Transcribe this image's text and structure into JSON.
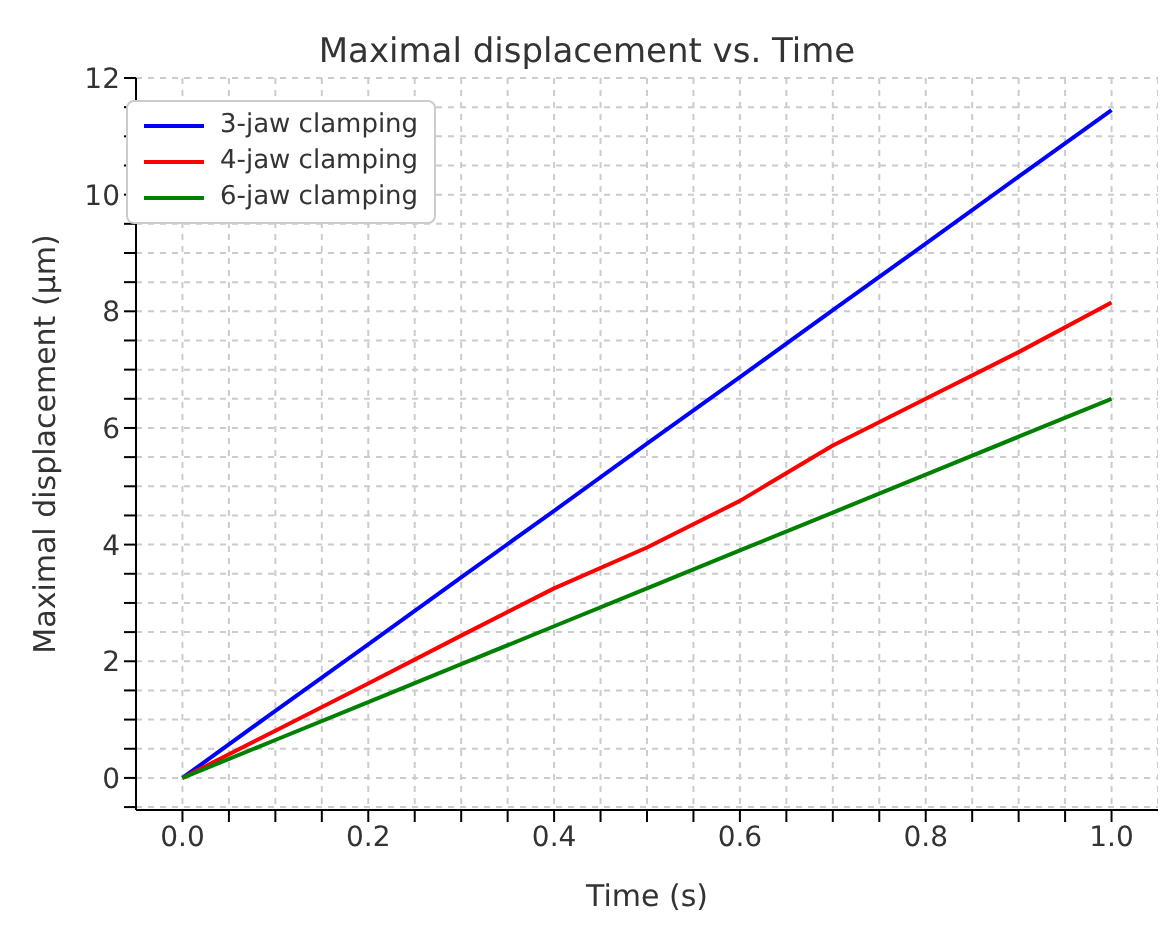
{
  "chart_data": {
    "type": "line",
    "title": "Maximal displacement vs. Time",
    "xlabel": "Time (s)",
    "ylabel": "Maximal displacement (µm)",
    "x": [
      0,
      0.1,
      0.2,
      0.3,
      0.4,
      0.5,
      0.6,
      0.7,
      0.8,
      0.9,
      1.0
    ],
    "series": [
      {
        "name": "3-jaw clamping",
        "color": "#0000ff",
        "values": [
          0,
          1.15,
          2.29,
          3.44,
          4.58,
          5.73,
          6.87,
          8.02,
          9.16,
          10.31,
          11.45
        ]
      },
      {
        "name": "4-jaw clamping",
        "color": "#ff0000",
        "values": [
          0,
          0.81,
          1.62,
          2.44,
          3.25,
          3.95,
          4.75,
          5.7,
          6.5,
          7.3,
          8.15
        ]
      },
      {
        "name": "6-jaw clamping",
        "color": "#008000",
        "values": [
          0,
          0.65,
          1.3,
          1.95,
          2.6,
          3.25,
          3.9,
          4.55,
          5.2,
          5.85,
          6.5
        ]
      }
    ],
    "xlim": [
      -0.05,
      1.05
    ],
    "xticks": [
      {
        "value": 0,
        "label": "0.0"
      },
      {
        "value": 0.05,
        "label": null
      },
      {
        "value": 0.1,
        "label": null
      },
      {
        "value": 0.15,
        "label": null
      },
      0.2,
      {
        "value": 0.25,
        "label": null
      },
      {
        "value": 0.3,
        "label": null
      },
      {
        "value": 0.35,
        "label": null
      },
      0.4,
      {
        "value": 0.45,
        "label": null
      },
      {
        "value": 0.5,
        "label": null
      },
      {
        "value": 0.55,
        "label": null
      },
      0.6,
      {
        "value": 0.65,
        "label": null
      },
      {
        "value": 0.7,
        "label": null
      },
      {
        "value": 0.75,
        "label": null
      },
      0.8,
      {
        "value": 0.85,
        "label": null
      },
      {
        "value": 0.9,
        "label": null
      },
      {
        "value": 0.95,
        "label": null
      },
      {
        "value": 1,
        "label": "1.0"
      }
    ],
    "ylim": [
      -0.55,
      12
    ],
    "yticks": [
      {
        "value": -0.5,
        "label": null
      },
      0,
      {
        "value": 0.5,
        "label": null
      },
      {
        "value": 1,
        "label": null
      },
      {
        "value": 1.5,
        "label": null
      },
      2,
      {
        "value": 2.5,
        "label": null
      },
      {
        "value": 3,
        "label": null
      },
      {
        "value": 3.5,
        "label": null
      },
      4,
      {
        "value": 4.5,
        "label": null
      },
      {
        "value": 5,
        "label": null
      },
      {
        "value": 5.5,
        "label": null
      },
      6,
      {
        "value": 6.5,
        "label": null
      },
      {
        "value": 7,
        "label": null
      },
      {
        "value": 7.5,
        "label": null
      },
      8,
      {
        "value": 8.5,
        "label": null
      },
      {
        "value": 9,
        "label": null
      },
      {
        "value": 9.5,
        "label": null
      },
      10,
      {
        "value": 10.5,
        "label": null
      },
      {
        "value": 11,
        "label": null
      },
      {
        "value": 11.5,
        "label": null
      },
      12
    ],
    "grid": true,
    "legend": "top left",
    "marker": "none",
    "line_style": "solid"
  }
}
